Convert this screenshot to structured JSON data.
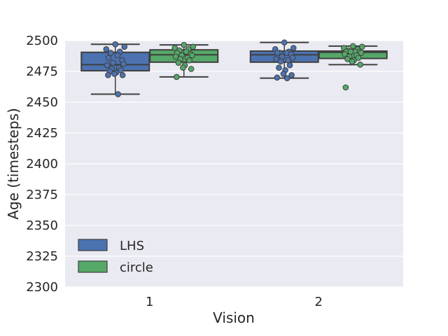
{
  "chart_data": {
    "type": "box",
    "title": "",
    "xlabel": "Vision",
    "ylabel": "Age (timesteps)",
    "categories": [
      "1",
      "2"
    ],
    "ylim": [
      2300,
      2500
    ],
    "yticks": [
      "2300",
      "2325",
      "2350",
      "2375",
      "2400",
      "2425",
      "2450",
      "2475",
      "2500"
    ],
    "grid": true,
    "legend_position": "lower-left",
    "series": [
      {
        "name": "LHS",
        "color": "#4c72b0",
        "boxes": [
          {
            "category": "1",
            "whisker_low": 2456.5,
            "q1": 2475.5,
            "median": 2480.5,
            "q3": 2490.5,
            "whisker_high": 2497,
            "points": [
              2497,
              2495,
              2493,
              2491,
              2490,
              2488,
              2486,
              2484,
              2482,
              2481,
              2480,
              2478,
              2477,
              2476,
              2475,
              2474,
              2473,
              2472,
              2472,
              2456.5
            ]
          },
          {
            "category": "2",
            "whisker_low": 2469.5,
            "q1": 2482.5,
            "median": 2488.5,
            "q3": 2491.5,
            "whisker_high": 2498.5,
            "points": [
              2498.5,
              2494,
              2493,
              2491,
              2490,
              2490,
              2490,
              2489,
              2487,
              2486,
              2485,
              2484,
              2483,
              2480,
              2478,
              2476,
              2473,
              2472,
              2470,
              2469.5
            ]
          }
        ]
      },
      {
        "name": "circle",
        "color": "#55a868",
        "boxes": [
          {
            "category": "1",
            "whisker_low": 2470.5,
            "q1": 2482.5,
            "median": 2488.5,
            "q3": 2492.5,
            "whisker_high": 2496.5,
            "points": [
              2496.5,
              2495,
              2494,
              2493,
              2492,
              2491,
              2490,
              2489,
              2488,
              2488,
              2487,
              2486,
              2485,
              2484,
              2482,
              2480,
              2478,
              2477,
              2470.5
            ]
          },
          {
            "category": "2",
            "whisker_low": 2480.5,
            "q1": 2485.5,
            "median": 2490.5,
            "q3": 2491.5,
            "whisker_high": 2495.5,
            "points": [
              2495.5,
              2495,
              2494,
              2493,
              2492,
              2491,
              2491,
              2491,
              2491,
              2490,
              2489,
              2488,
              2487,
              2486,
              2485,
              2484,
              2483,
              2480.5,
              2462
            ]
          }
        ]
      }
    ]
  }
}
